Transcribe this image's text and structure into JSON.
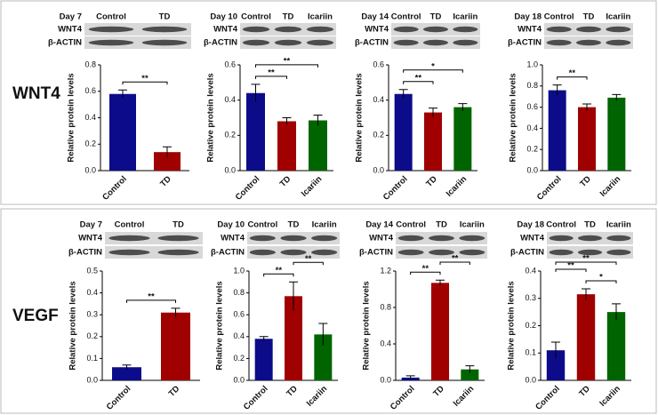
{
  "row_labels": [
    "WNT4",
    "VEGF"
  ],
  "chart_data": [
    {
      "type": "bar",
      "blot": {
        "day": "Day 7",
        "lanes": [
          "Control",
          "TD"
        ],
        "rows": [
          "WNT4",
          "β-ACTIN"
        ]
      },
      "ylabel": "Relative protein levels",
      "categories": [
        "Control",
        "TD"
      ],
      "values": [
        0.58,
        0.14
      ],
      "errors": [
        0.03,
        0.04
      ],
      "colors": [
        "#0c0c8a",
        "#a00000"
      ],
      "ylim": [
        0,
        0.8
      ],
      "yticks": [
        {
          "value": 0,
          "label": "0.0"
        },
        0.2,
        0.4,
        0.6,
        0.8
      ],
      "significance": [
        {
          "from": 0,
          "to": 1,
          "label": "**"
        }
      ]
    },
    {
      "type": "bar",
      "blot": {
        "day": "Day 10",
        "lanes": [
          "Control",
          "TD",
          "Icariin"
        ],
        "rows": [
          "WNT4",
          "β-ACTIN"
        ]
      },
      "ylabel": "Relative protein levels",
      "categories": [
        "Control",
        "TD",
        "Icariin"
      ],
      "values": [
        0.44,
        0.28,
        0.285
      ],
      "errors": [
        0.05,
        0.02,
        0.03
      ],
      "colors": [
        "#0c0c8a",
        "#a00000",
        "#006400"
      ],
      "ylim": [
        0,
        0.6
      ],
      "yticks": [
        {
          "value": 0,
          "label": "0.0"
        },
        0.2,
        0.4,
        0.6
      ],
      "significance": [
        {
          "from": 0,
          "to": 1,
          "label": "**"
        },
        {
          "from": 0,
          "to": 2,
          "label": "**"
        }
      ]
    },
    {
      "type": "bar",
      "blot": {
        "day": "Day 14",
        "lanes": [
          "Control",
          "TD",
          "Icariin"
        ],
        "rows": [
          "WNT4",
          "β-ACTIN"
        ]
      },
      "ylabel": "Relative protein levels",
      "categories": [
        "Control",
        "TD",
        "Icariin"
      ],
      "values": [
        0.435,
        0.33,
        0.36
      ],
      "errors": [
        0.025,
        0.025,
        0.02
      ],
      "colors": [
        "#0c0c8a",
        "#a00000",
        "#006400"
      ],
      "ylim": [
        0,
        0.6
      ],
      "yticks": [
        {
          "value": 0,
          "label": "0.0"
        },
        0.2,
        0.4,
        0.6
      ],
      "significance": [
        {
          "from": 0,
          "to": 1,
          "label": "**"
        },
        {
          "from": 0,
          "to": 2,
          "label": "*"
        }
      ]
    },
    {
      "type": "bar",
      "blot": {
        "day": "Day 18",
        "lanes": [
          "Control",
          "TD",
          "Icariin"
        ],
        "rows": [
          "WNT4",
          "β-ACTIN"
        ]
      },
      "ylabel": "Relative protein levels",
      "categories": [
        "Control",
        "TD",
        "Icariin"
      ],
      "values": [
        0.76,
        0.6,
        0.69
      ],
      "errors": [
        0.05,
        0.03,
        0.03
      ],
      "colors": [
        "#0c0c8a",
        "#a00000",
        "#006400"
      ],
      "ylim": [
        0,
        1
      ],
      "yticks": [
        {
          "value": 0,
          "label": "0.0"
        },
        0.2,
        0.4,
        0.6,
        0.8,
        {
          "value": 1,
          "label": "1.0"
        }
      ],
      "significance": [
        {
          "from": 0,
          "to": 1,
          "label": "**"
        }
      ]
    },
    {
      "type": "bar",
      "blot": {
        "day": "Day 7",
        "lanes": [
          "Control",
          "TD"
        ],
        "rows": [
          "WNT4",
          "β-ACTIN"
        ]
      },
      "ylabel": "Relative protein levels",
      "categories": [
        "Control",
        "TD"
      ],
      "values": [
        0.06,
        0.31
      ],
      "errors": [
        0.01,
        0.02
      ],
      "colors": [
        "#0c0c8a",
        "#a00000"
      ],
      "ylim": [
        0,
        0.5
      ],
      "yticks": [
        {
          "value": 0,
          "label": "0.0"
        },
        0.1,
        0.2,
        0.3,
        0.4,
        0.5
      ],
      "significance": [
        {
          "from": 0,
          "to": 1,
          "label": "**"
        }
      ]
    },
    {
      "type": "bar",
      "blot": {
        "day": "Day 10",
        "lanes": [
          "Control",
          "TD",
          "Icariin"
        ],
        "rows": [
          "WNT4",
          "β-ACTIN"
        ]
      },
      "ylabel": "Relative protein levels",
      "categories": [
        "Control",
        "TD",
        "Icariin"
      ],
      "values": [
        0.38,
        0.77,
        0.42
      ],
      "errors": [
        0.02,
        0.13,
        0.1
      ],
      "colors": [
        "#0c0c8a",
        "#a00000",
        "#006400"
      ],
      "ylim": [
        0,
        1
      ],
      "yticks": [
        {
          "value": 0,
          "label": "0.0"
        },
        0.2,
        0.4,
        0.6,
        0.8,
        {
          "value": 1,
          "label": "1.0"
        }
      ],
      "significance": [
        {
          "from": 0,
          "to": 1,
          "label": "**"
        },
        {
          "from": 1,
          "to": 2,
          "label": "**"
        }
      ]
    },
    {
      "type": "bar",
      "blot": {
        "day": "Day 14",
        "lanes": [
          "Control",
          "TD",
          "Icariin"
        ],
        "rows": [
          "WNT4",
          "β-ACTIN"
        ]
      },
      "ylabel": "Relative protein levels",
      "categories": [
        "Control",
        "TD",
        "Icariin"
      ],
      "values": [
        0.03,
        1.07,
        0.12
      ],
      "errors": [
        0.02,
        0.03,
        0.04
      ],
      "colors": [
        "#0c0c8a",
        "#a00000",
        "#006400"
      ],
      "ylim": [
        0,
        1.2
      ],
      "yticks": [
        {
          "value": 0,
          "label": "0.0"
        },
        0.4,
        0.8,
        1.2
      ],
      "significance": [
        {
          "from": 0,
          "to": 1,
          "label": "**"
        },
        {
          "from": 1,
          "to": 2,
          "label": "**"
        }
      ]
    },
    {
      "type": "bar",
      "blot": {
        "day": "Day 18",
        "lanes": [
          "Control",
          "TD",
          "Icariin"
        ],
        "rows": [
          "WNT4",
          "β-ACTIN"
        ]
      },
      "ylabel": "Relative protein levels",
      "categories": [
        "Control",
        "TD",
        "Icariin"
      ],
      "values": [
        0.11,
        0.315,
        0.25
      ],
      "errors": [
        0.03,
        0.02,
        0.03
      ],
      "colors": [
        "#0c0c8a",
        "#a00000",
        "#006400"
      ],
      "ylim": [
        0,
        0.4
      ],
      "yticks": [
        {
          "value": 0,
          "label": "0.0"
        },
        0.1,
        0.2,
        0.3,
        0.4
      ],
      "significance": [
        {
          "from": 1,
          "to": 2,
          "label": "*"
        },
        {
          "from": 0,
          "to": 1,
          "label": "**"
        },
        {
          "from": 0,
          "to": 2,
          "label": "**"
        }
      ]
    }
  ]
}
